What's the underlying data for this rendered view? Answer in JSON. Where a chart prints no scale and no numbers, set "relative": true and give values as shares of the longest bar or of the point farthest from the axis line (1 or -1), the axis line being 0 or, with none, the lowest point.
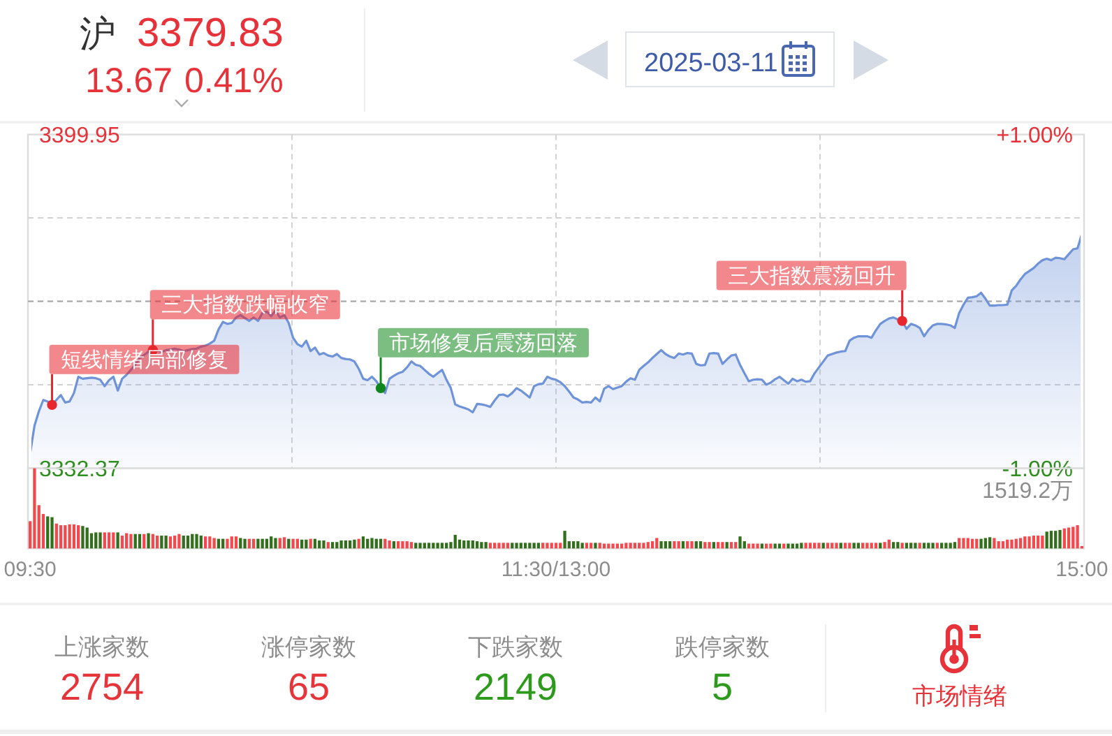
{
  "chart_data": [
    {
      "type": "other",
      "title": "沪",
      "color": "#e8323a",
      "annotations": [
        "3379.83",
        "13.67",
        "0.41%",
        "2025-03-11"
      ]
    },
    {
      "type": "area",
      "categories": [
        null,
        null,
        null,
        null,
        null,
        null,
        null,
        null,
        null,
        null,
        null,
        null,
        null,
        null,
        null,
        null,
        null,
        null,
        null,
        null,
        null,
        null,
        null,
        null,
        null,
        null,
        null,
        null,
        null,
        null,
        null,
        null,
        null,
        null,
        null,
        null,
        null,
        null,
        null,
        null,
        null,
        null,
        null,
        null,
        null,
        null,
        null,
        null,
        null,
        null,
        null,
        null,
        null,
        null,
        null,
        null,
        null,
        null,
        null,
        null,
        null,
        null,
        null,
        null,
        null,
        null,
        null,
        null,
        null,
        null,
        null,
        null,
        null,
        null,
        null,
        null,
        null,
        null,
        null,
        null,
        null,
        null,
        null,
        null,
        null,
        null,
        null,
        null,
        null,
        null,
        null,
        null,
        null,
        null,
        null,
        null,
        null,
        null,
        null,
        null,
        null,
        null,
        null,
        null,
        null,
        null,
        null,
        null,
        null,
        null,
        null,
        null,
        null,
        null,
        null,
        null,
        null,
        null,
        null,
        null,
        null,
        null,
        null,
        null,
        null,
        null,
        null,
        null,
        null,
        null,
        null,
        null,
        null,
        null,
        null,
        null,
        null,
        null,
        null,
        null,
        null,
        null,
        null,
        null,
        null,
        null,
        null,
        null,
        null,
        null,
        null,
        null,
        null,
        null,
        null,
        null,
        null,
        null,
        null,
        null,
        null,
        null,
        null,
        null,
        null,
        null,
        null,
        null,
        null,
        null,
        null,
        null,
        null,
        null,
        null,
        null,
        null,
        null,
        null,
        null,
        null,
        null,
        null,
        null,
        null,
        null,
        null,
        null,
        null,
        null,
        null,
        null,
        null,
        null,
        null,
        null,
        null,
        null,
        null,
        null,
        null,
        null,
        null,
        null,
        null,
        null,
        null,
        null,
        null,
        null,
        null,
        null,
        null,
        null,
        null,
        null,
        null,
        null,
        null,
        null,
        null,
        null,
        null,
        null,
        null,
        null,
        null,
        null,
        null,
        null,
        null,
        null,
        null,
        null,
        null,
        null,
        null,
        null,
        null,
        null,
        null
      ],
      "series": [
        {
          "color": "#6f93d8",
          "values": [
            3335.4,
            3341.0,
            3343.9,
            3346.2,
            3345.9,
            3345.2,
            3346.2,
            3347.2,
            3345.7,
            3345.9,
            3347.6,
            3350.9,
            3350.5,
            3350.6,
            3350.7,
            3350.6,
            3350.3,
            3349.0,
            3350.2,
            3350.9,
            3348.1,
            3350.5,
            3351.3,
            3352.3,
            3353.3,
            3354.7,
            3355.3,
            3356.0,
            3356.3,
            3356.2,
            3355.9,
            3356.3,
            3356.4,
            3356.6,
            3356.4,
            3356.1,
            3356.3,
            3356.5,
            3356.6,
            3357.0,
            3357.2,
            3357.6,
            3358.2,
            3360.5,
            3362.0,
            3361.6,
            3361.8,
            3362.9,
            3363.4,
            3362.8,
            3362.2,
            3362.9,
            3362.2,
            3363.8,
            3364.1,
            3363.2,
            3364.3,
            3362.9,
            3363.4,
            3361.8,
            3358.8,
            3357.5,
            3357.0,
            3358.2,
            3356.1,
            3356.8,
            3355.4,
            3355.7,
            3355.2,
            3355.0,
            3355.5,
            3354.7,
            3354.5,
            3354.4,
            3354.0,
            3352.5,
            3350.5,
            3350.2,
            3350.9,
            3350.0,
            3348.6,
            3347.6,
            3350.5,
            3351.1,
            3351.6,
            3351.9,
            3352.8,
            3354.0,
            3353.3,
            3353.1,
            3352.3,
            3351.5,
            3350.9,
            3351.6,
            3352.3,
            3350.3,
            3348.6,
            3345.3,
            3344.9,
            3344.6,
            3344.3,
            3343.7,
            3345.4,
            3345.3,
            3345.1,
            3344.8,
            3346.1,
            3347.2,
            3347.3,
            3346.9,
            3347.6,
            3348.6,
            3348.1,
            3347.4,
            3346.7,
            3349.0,
            3349.4,
            3349.5,
            3350.9,
            3350.5,
            3350.3,
            3349.8,
            3349.0,
            3347.9,
            3346.7,
            3346.3,
            3345.7,
            3345.8,
            3345.7,
            3346.7,
            3345.9,
            3348.5,
            3349.0,
            3348.4,
            3348.7,
            3349.0,
            3349.9,
            3350.6,
            3350.3,
            3352.3,
            3353.1,
            3353.8,
            3354.7,
            3355.5,
            3356.3,
            3355.5,
            3355.0,
            3354.7,
            3355.6,
            3355.4,
            3355.7,
            3355.6,
            3353.5,
            3353.2,
            3353.3,
            3355.6,
            3355.7,
            3355.6,
            3353.5,
            3354.4,
            3355.2,
            3355.4,
            3353.3,
            3351.6,
            3350.0,
            3350.3,
            3350.4,
            3350.3,
            3349.3,
            3349.7,
            3350.4,
            3350.9,
            3350.2,
            3349.5,
            3350.5,
            3350.0,
            3350.3,
            3349.9,
            3350.0,
            3351.6,
            3352.8,
            3354.0,
            3355.2,
            3355.5,
            3355.8,
            3356.0,
            3356.1,
            3358.2,
            3358.8,
            3359.1,
            3359.1,
            3359.1,
            3358.8,
            3360.3,
            3361.6,
            3362.2,
            3362.7,
            3362.9,
            3362.5,
            3362.2,
            3360.6,
            3361.6,
            3361.3,
            3360.8,
            3359.1,
            3360.4,
            3361.3,
            3361.6,
            3361.6,
            3361.5,
            3361.3,
            3360.8,
            3363.8,
            3365.5,
            3366.9,
            3367.0,
            3367.2,
            3367.9,
            3366.7,
            3365.3,
            3365.3,
            3365.4,
            3365.4,
            3365.5,
            3368.4,
            3369.3,
            3370.6,
            3371.7,
            3372.3,
            3372.9,
            3373.8,
            3374.5,
            3374.8,
            3374.5,
            3375.0,
            3374.9,
            3374.7,
            3375.7,
            3376.7,
            3376.9,
            3379.8
          ]
        },
        {
          "type": "scatter",
          "color": "#e8262d",
          "values": [
            null,
            null,
            null,
            null,
            null,
            3345.2,
            null,
            null,
            null,
            null,
            null,
            null,
            null,
            null,
            null,
            null,
            null,
            null,
            null,
            null,
            null,
            null,
            null,
            null,
            null,
            null,
            null,
            null,
            3356.3,
            null,
            null,
            null,
            null,
            null,
            null,
            null,
            null,
            null,
            null,
            null,
            null,
            null,
            null,
            null,
            null,
            null,
            null,
            null,
            null,
            null,
            null,
            null,
            null,
            null,
            null,
            null,
            null,
            null,
            null,
            null,
            null,
            null,
            null,
            null,
            null,
            null,
            null,
            null,
            null,
            null,
            null,
            null,
            null,
            null,
            null,
            null,
            null,
            null,
            null,
            null,
            null,
            null,
            null,
            null,
            null,
            null,
            null,
            null,
            null,
            null,
            null,
            null,
            null,
            null,
            null,
            null,
            null,
            null,
            null,
            null,
            null,
            null,
            null,
            null,
            null,
            null,
            null,
            null,
            null,
            null,
            null,
            null,
            null,
            null,
            null,
            null,
            null,
            null,
            null,
            null,
            null,
            null,
            null,
            null,
            null,
            null,
            null,
            null,
            null,
            null,
            null,
            null,
            null,
            null,
            null,
            null,
            null,
            null,
            null,
            null,
            null,
            null,
            null,
            null,
            null,
            null,
            null,
            null,
            null,
            null,
            null,
            null,
            null,
            null,
            null,
            null,
            null,
            null,
            null,
            null,
            null,
            null,
            null,
            null,
            null,
            null,
            null,
            null,
            null,
            null,
            null,
            null,
            null,
            null,
            null,
            null,
            null,
            null,
            null,
            null,
            null,
            null,
            null,
            null,
            null,
            null,
            null,
            null,
            null,
            null,
            null,
            null,
            null,
            null,
            null,
            null,
            null,
            null,
            null,
            3362.2,
            null,
            null,
            null,
            null,
            null,
            null,
            null,
            null,
            null,
            null,
            null,
            null,
            null,
            null,
            null,
            null,
            null,
            null,
            null,
            null,
            null,
            null,
            null,
            null,
            null,
            null,
            null,
            null,
            null,
            null,
            null,
            null,
            null,
            null,
            null,
            null,
            null,
            null,
            null,
            null,
            null
          ]
        },
        {
          "type": "scatter",
          "color": "#11861c",
          "values": [
            null,
            null,
            null,
            null,
            null,
            null,
            null,
            null,
            null,
            null,
            null,
            null,
            null,
            null,
            null,
            null,
            null,
            null,
            null,
            null,
            null,
            null,
            null,
            null,
            null,
            null,
            null,
            null,
            null,
            null,
            null,
            null,
            null,
            null,
            null,
            null,
            null,
            null,
            null,
            null,
            null,
            null,
            null,
            null,
            null,
            null,
            null,
            null,
            null,
            null,
            null,
            null,
            null,
            null,
            null,
            null,
            null,
            null,
            null,
            null,
            null,
            null,
            null,
            null,
            null,
            null,
            null,
            null,
            null,
            null,
            null,
            null,
            null,
            null,
            null,
            null,
            null,
            null,
            null,
            null,
            3348.6,
            null,
            null,
            null,
            null,
            null,
            null,
            null,
            null,
            null,
            null,
            null,
            null,
            null,
            null,
            null,
            null,
            null,
            null,
            null,
            null,
            null,
            null,
            null,
            null,
            null,
            null,
            null,
            null,
            null,
            null,
            null,
            null,
            null,
            null,
            null,
            null,
            null,
            null,
            null,
            null,
            null,
            null,
            null,
            null,
            null,
            null,
            null,
            null,
            null,
            null,
            null,
            null,
            null,
            null,
            null,
            null,
            null,
            null,
            null,
            null,
            null,
            null,
            null,
            null,
            null,
            null,
            null,
            null,
            null,
            null,
            null,
            null,
            null,
            null,
            null,
            null,
            null,
            null,
            null,
            null,
            null,
            null,
            null,
            null,
            null,
            null,
            null,
            null,
            null,
            null,
            null,
            null,
            null,
            null,
            null,
            null,
            null,
            null,
            null,
            null,
            null,
            null,
            null,
            null,
            null,
            null,
            null,
            null,
            null,
            null,
            null,
            null,
            null,
            null,
            null,
            null,
            null,
            null,
            null,
            null,
            null,
            null,
            null,
            null,
            null,
            null,
            null,
            null,
            null,
            null,
            null,
            null,
            null,
            null,
            null,
            null,
            null,
            null,
            null,
            null,
            null,
            null,
            null,
            null,
            null,
            null,
            null,
            null,
            null,
            null,
            null,
            null,
            null,
            null,
            null,
            null,
            null,
            null,
            null,
            null
          ]
        }
      ],
      "ylim": [
        3332.37,
        3399.95
      ],
      "yticks": [
        3332.37,
        {
          "value": 3349.27,
          "label": null
        },
        {
          "value": 3366.16,
          "label": null
        },
        {
          "value": 3383.06,
          "label": null
        },
        3399.95
      ],
      "y2lim": [
        -1,
        1
      ],
      "y2ticks": [
        {
          "value": -1,
          "label": "-1.00%"
        },
        {
          "value": 1,
          "label": "+1.00%"
        }
      ],
      "ref_lines": [
        {
          "axis": "y",
          "value": 3366.16,
          "color": "#a8a8a8",
          "line_style": "dashed"
        }
      ],
      "grid": true,
      "tick_labels": "y",
      "annotations": [
        "短线情绪局部修复",
        "三大指数跌幅收窄",
        "市场修复后震荡回落",
        "三大指数震荡回升"
      ]
    },
    {
      "type": "bar",
      "relative": true,
      "categories": [
        "09:30",
        null,
        null,
        null,
        null,
        null,
        null,
        null,
        null,
        null,
        null,
        null,
        null,
        null,
        null,
        null,
        null,
        null,
        null,
        null,
        null,
        null,
        null,
        null,
        null,
        null,
        null,
        null,
        null,
        null,
        null,
        null,
        null,
        null,
        null,
        null,
        null,
        null,
        null,
        null,
        null,
        null,
        null,
        null,
        null,
        null,
        null,
        null,
        null,
        null,
        null,
        null,
        null,
        null,
        null,
        null,
        null,
        null,
        null,
        null,
        null,
        null,
        null,
        null,
        null,
        null,
        null,
        null,
        null,
        null,
        null,
        null,
        null,
        null,
        null,
        null,
        null,
        null,
        null,
        null,
        null,
        null,
        null,
        null,
        null,
        null,
        null,
        null,
        null,
        null,
        null,
        null,
        null,
        null,
        null,
        null,
        null,
        null,
        null,
        null,
        null,
        null,
        null,
        null,
        null,
        null,
        null,
        null,
        null,
        null,
        null,
        null,
        null,
        null,
        null,
        null,
        null,
        null,
        null,
        null,
        "11:30/13:00",
        null,
        null,
        null,
        null,
        null,
        null,
        null,
        null,
        null,
        null,
        null,
        null,
        null,
        null,
        null,
        null,
        null,
        null,
        null,
        null,
        null,
        null,
        null,
        null,
        null,
        null,
        null,
        null,
        null,
        null,
        null,
        null,
        null,
        null,
        null,
        null,
        null,
        null,
        null,
        null,
        null,
        null,
        null,
        null,
        null,
        null,
        null,
        null,
        null,
        null,
        null,
        null,
        null,
        null,
        null,
        null,
        null,
        null,
        null,
        null,
        null,
        null,
        null,
        null,
        null,
        null,
        null,
        null,
        null,
        null,
        null,
        null,
        null,
        null,
        null,
        null,
        null,
        null,
        null,
        null,
        null,
        null,
        null,
        null,
        null,
        null,
        null,
        null,
        null,
        null,
        null,
        null,
        null,
        null,
        null,
        null,
        null,
        null,
        null,
        null,
        null,
        null,
        null,
        null,
        null,
        null,
        null,
        null,
        null,
        null,
        null,
        null,
        null,
        null,
        null,
        null,
        null,
        null,
        null,
        "15:00"
      ],
      "values": [
        0.34,
        1,
        0.54,
        0.43,
        0.4,
        0.39,
        0.31,
        0.29,
        0.29,
        0.3,
        0.3,
        0.29,
        0.28,
        0.26,
        0.19,
        0.2,
        0.2,
        0.2,
        0.2,
        0.2,
        0.2,
        0.16,
        0.19,
        0.18,
        0.18,
        0.18,
        0.18,
        0.19,
        0.18,
        0.16,
        0.16,
        0.16,
        0.15,
        0.16,
        0.18,
        0.16,
        0.16,
        0.18,
        0.18,
        0.16,
        0.15,
        0.15,
        0.13,
        0.12,
        0.12,
        0.12,
        0.15,
        0.15,
        0.13,
        0.12,
        0.12,
        0.12,
        0.12,
        0.12,
        0.12,
        0.15,
        0.13,
        0.13,
        0.14,
        0.12,
        0.12,
        0.12,
        0.11,
        0.11,
        0.12,
        0.12,
        0.1,
        0.1,
        0.08,
        0.08,
        0.08,
        0.1,
        0.1,
        0.1,
        0.11,
        0.12,
        0.15,
        0.12,
        0.13,
        0.12,
        0.12,
        0.12,
        0.1,
        0.09,
        0.09,
        0.09,
        0.09,
        0.08,
        0.07,
        0.07,
        0.07,
        0.07,
        0.07,
        0.07,
        0.07,
        0.07,
        0.08,
        0.17,
        0.11,
        0.1,
        0.1,
        0.1,
        0.09,
        0.08,
        0.08,
        0.07,
        0.07,
        0.07,
        0.07,
        0.07,
        0.07,
        0.07,
        0.07,
        0.07,
        0.07,
        0.07,
        0.07,
        0.07,
        0.07,
        0.07,
        0.07,
        0.07,
        0.22,
        0.09,
        0.09,
        0.09,
        0.07,
        0.07,
        0.07,
        0.07,
        0.07,
        0.06,
        0.06,
        0.06,
        0.06,
        0.06,
        0.07,
        0.07,
        0.07,
        0.07,
        0.07,
        0.08,
        0.09,
        0.13,
        0.09,
        0.09,
        0.09,
        0.09,
        0.09,
        0.09,
        0.09,
        0.09,
        0.09,
        0.09,
        0.08,
        0.08,
        0.08,
        0.08,
        0.08,
        0.08,
        0.08,
        0.08,
        0.15,
        0.09,
        0.06,
        0.06,
        0.06,
        0.06,
        0.06,
        0.06,
        0.06,
        0.06,
        0.06,
        0.06,
        0.06,
        0.06,
        0.07,
        0.07,
        0.07,
        0.07,
        0.07,
        0.07,
        0.07,
        0.07,
        0.07,
        0.07,
        0.07,
        0.07,
        0.07,
        0.07,
        0.07,
        0.07,
        0.07,
        0.07,
        0.07,
        0.08,
        0.11,
        0.08,
        0.08,
        0.07,
        0.07,
        0.07,
        0.07,
        0.07,
        0.07,
        0.07,
        0.07,
        0.07,
        0.07,
        0.07,
        0.07,
        0.08,
        0.13,
        0.13,
        0.13,
        0.12,
        0.12,
        0.12,
        0.13,
        0.14,
        0.13,
        0.09,
        0.09,
        0.11,
        0.11,
        0.12,
        0.13,
        0.15,
        0.15,
        0.16,
        0.16,
        0.16,
        0.21,
        0.22,
        0.22,
        0.23,
        0.25,
        0.26,
        0.27,
        0.29,
        0.03
      ],
      "colors": [
        "#f04a4f",
        "#f04a4f",
        "#f04a4f",
        "#f04a4f",
        "#336e1d",
        "#336e1d",
        "#f04a4f",
        "#f04a4f",
        "#f04a4f",
        "#f04a4f",
        "#f04a4f",
        "#f04a4f",
        "#336e1d",
        "#336e1d",
        "#336e1d",
        "#336e1d",
        "#336e1d",
        "#f04a4f",
        "#f04a4f",
        "#f04a4f",
        "#336e1d",
        "#f04a4f",
        "#f04a4f",
        "#f04a4f",
        "#336e1d",
        "#336e1d",
        "#f04a4f",
        "#336e1d",
        "#f04a4f",
        "#f04a4f",
        "#336e1d",
        "#336e1d",
        "#f04a4f",
        "#f04a4f",
        "#f04a4f",
        "#336e1d",
        "#336e1d",
        "#336e1d",
        "#336e1d",
        "#336e1d",
        "#f04a4f",
        "#f04a4f",
        "#f04a4f",
        "#336e1d",
        "#336e1d",
        "#f04a4f",
        "#f04a4f",
        "#f04a4f",
        "#336e1d",
        "#336e1d",
        "#f04a4f",
        "#f04a4f",
        "#336e1d",
        "#336e1d",
        "#336e1d",
        "#336e1d",
        "#336e1d",
        "#f04a4f",
        "#f04a4f",
        "#336e1d",
        "#f04a4f",
        "#f04a4f",
        "#336e1d",
        "#336e1d",
        "#f04a4f",
        "#336e1d",
        "#336e1d",
        "#336e1d",
        "#f04a4f",
        "#336e1d",
        "#336e1d",
        "#336e1d",
        "#336e1d",
        "#336e1d",
        "#336e1d",
        "#f04a4f",
        "#336e1d",
        "#336e1d",
        "#336e1d",
        "#336e1d",
        "#336e1d",
        "#f04a4f",
        "#f04a4f",
        "#336e1d",
        "#f04a4f",
        "#f04a4f",
        "#f04a4f",
        "#f04a4f",
        "#336e1d",
        "#336e1d",
        "#336e1d",
        "#336e1d",
        "#336e1d",
        "#336e1d",
        "#336e1d",
        "#336e1d",
        "#336e1d",
        "#336e1d",
        "#336e1d",
        "#336e1d",
        "#336e1d",
        "#336e1d",
        "#336e1d",
        "#336e1d",
        "#336e1d",
        "#f04a4f",
        "#f04a4f",
        "#f04a4f",
        "#f04a4f",
        "#f04a4f",
        "#336e1d",
        "#336e1d",
        "#336e1d",
        "#336e1d",
        "#336e1d",
        "#336e1d",
        "#336e1d",
        "#f04a4f",
        "#f04a4f",
        "#f04a4f",
        "#f04a4f",
        "#f04a4f",
        "#336e1d",
        "#336e1d",
        "#336e1d",
        "#336e1d",
        "#336e1d",
        "#f04a4f",
        "#f04a4f",
        "#336e1d",
        "#f04a4f",
        "#f04a4f",
        "#f04a4f",
        "#f04a4f",
        "#f04a4f",
        "#f04a4f",
        "#f04a4f",
        "#f04a4f",
        "#f04a4f",
        "#f04a4f",
        "#f04a4f",
        "#f04a4f",
        "#f04a4f",
        "#f04a4f",
        "#336e1d",
        "#336e1d",
        "#336e1d",
        "#f04a4f",
        "#f04a4f",
        "#336e1d",
        "#f04a4f",
        "#f04a4f",
        "#336e1d",
        "#336e1d",
        "#f04a4f",
        "#f04a4f",
        "#336e1d",
        "#f04a4f",
        "#f04a4f",
        "#336e1d",
        "#f04a4f",
        "#f04a4f",
        "#336e1d",
        "#336e1d",
        "#f04a4f",
        "#f04a4f",
        "#f04a4f",
        "#336e1d",
        "#f04a4f",
        "#f04a4f",
        "#336e1d",
        "#336e1d",
        "#f04a4f",
        "#336e1d",
        "#336e1d",
        "#336e1d",
        "#336e1d",
        "#f04a4f",
        "#f04a4f",
        "#f04a4f",
        "#f04a4f",
        "#336e1d",
        "#f04a4f",
        "#f04a4f",
        "#f04a4f",
        "#336e1d",
        "#f04a4f",
        "#f04a4f",
        "#336e1d",
        "#336e1d",
        "#f04a4f",
        "#f04a4f",
        "#f04a4f",
        "#f04a4f",
        "#336e1d",
        "#f04a4f",
        "#f04a4f",
        "#336e1d",
        "#336e1d",
        "#f04a4f",
        "#336e1d",
        "#336e1d",
        "#336e1d",
        "#f04a4f",
        "#336e1d",
        "#336e1d",
        "#336e1d",
        "#f04a4f",
        "#336e1d",
        "#336e1d",
        "#336e1d",
        "#336e1d",
        "#f04a4f",
        "#f04a4f",
        "#f04a4f",
        "#f04a4f",
        "#f04a4f",
        "#336e1d",
        "#336e1d",
        "#336e1d",
        "#f04a4f",
        "#f04a4f",
        "#f04a4f",
        "#f04a4f",
        "#f04a4f",
        "#f04a4f",
        "#f04a4f",
        "#f04a4f",
        "#f04a4f",
        "#f04a4f",
        "#f04a4f",
        "#f04a4f",
        "#336e1d",
        "#336e1d",
        "#336e1d",
        "#336e1d",
        "#f04a4f",
        "#f04a4f",
        "#f04a4f",
        "#f04a4f",
        "#f04a4f"
      ],
      "tick_labels": "x",
      "annotations": [
        "1519.2万"
      ]
    },
    {
      "type": "other",
      "categories": [
        "上涨家数",
        "涨停家数",
        "下跌家数",
        "跌停家数"
      ],
      "values": [
        2754,
        65,
        2149,
        5
      ],
      "data_labels": true,
      "colors": [
        "#e6353a",
        "#e6353a",
        "#2e9a1c",
        "#2e9a1c"
      ],
      "annotations": [
        "市场情绪"
      ]
    }
  ]
}
